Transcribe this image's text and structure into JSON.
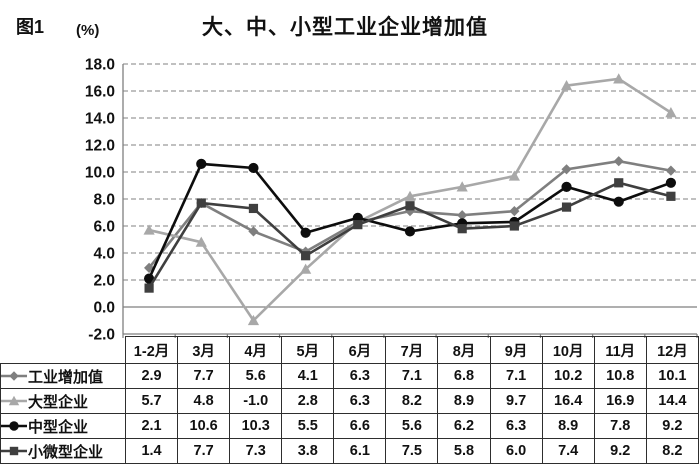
{
  "header": {
    "figure_label": "图1",
    "unit_label": "(%)",
    "title": "大、中、小型工业企业增加值"
  },
  "chart_data": {
    "type": "line",
    "title": "大、中、小型工业企业增加值",
    "unit": "%",
    "categories": [
      "1-2月",
      "3月",
      "4月",
      "5月",
      "6月",
      "7月",
      "8月",
      "9月",
      "10月",
      "11月",
      "12月"
    ],
    "series": [
      {
        "name": "工业增加值",
        "marker": "diamond",
        "color": "#7f7f7f",
        "values": [
          2.9,
          7.7,
          5.6,
          4.1,
          6.3,
          7.1,
          6.8,
          7.1,
          10.2,
          10.8,
          10.1
        ]
      },
      {
        "name": "大型企业",
        "marker": "triangle",
        "color": "#a8a8a8",
        "values": [
          5.7,
          4.8,
          -1.0,
          2.8,
          6.3,
          8.2,
          8.9,
          9.7,
          16.4,
          16.9,
          14.4
        ]
      },
      {
        "name": "中型企业",
        "marker": "circle",
        "color": "#0d0d0d",
        "values": [
          2.1,
          10.6,
          10.3,
          5.5,
          6.6,
          5.6,
          6.2,
          6.3,
          8.9,
          7.8,
          9.2
        ]
      },
      {
        "name": "小微型企业",
        "marker": "square",
        "color": "#3f3f3f",
        "values": [
          1.4,
          7.7,
          7.3,
          3.8,
          6.1,
          7.5,
          5.8,
          6.0,
          7.4,
          9.2,
          8.2
        ]
      }
    ],
    "ylim": [
      -2.0,
      18.0
    ],
    "yticks": [
      "18.0",
      "16.0",
      "14.0",
      "12.0",
      "10.0",
      "8.0",
      "6.0",
      "4.0",
      "2.0",
      "0.0",
      "-2.0"
    ],
    "grid": "horizontal-dashed",
    "zero_line": "solid",
    "legend_position": "table-row-headers"
  },
  "style_colors": {
    "grid": "#9a9a9a",
    "axis": "#7f7f7f",
    "tick_text": "#111111",
    "table_border": "#2e2e2e"
  }
}
